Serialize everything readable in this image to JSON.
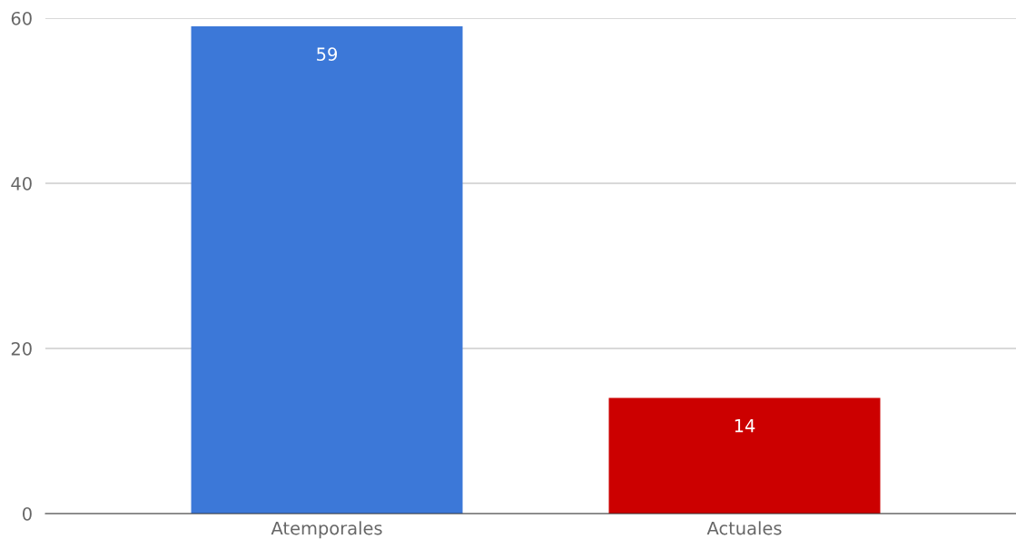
{
  "chart_data": {
    "type": "bar",
    "categories": [
      "Atemporales",
      "Actuales"
    ],
    "values": [
      59,
      14
    ],
    "colors": [
      "#3c78d8",
      "#cc0000"
    ],
    "ylim": [
      0,
      60
    ],
    "yticks": [
      0,
      20,
      40,
      60
    ],
    "grid": "y",
    "data_labels": true,
    "legend": false
  }
}
